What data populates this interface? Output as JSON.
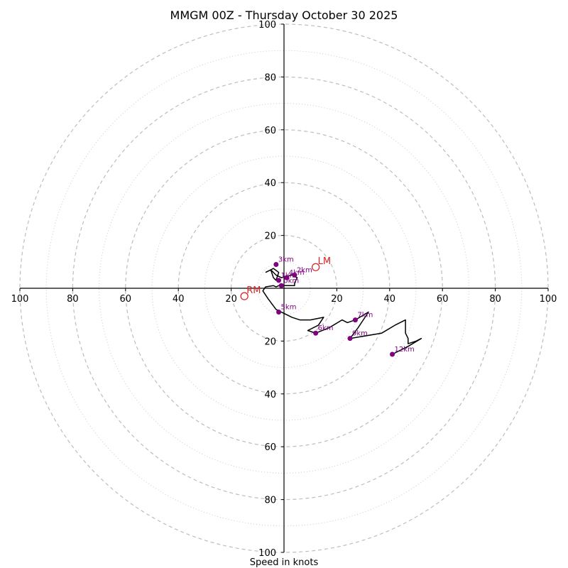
{
  "chart_data": {
    "type": "hodograph",
    "title": "MMGM 00Z - Thursday October 30 2025",
    "xlabel": "Speed in knots",
    "range": [
      -100,
      100
    ],
    "rings_major": [
      20,
      40,
      60,
      80,
      100
    ],
    "rings_minor": [
      10,
      30,
      50,
      70,
      90
    ],
    "tick_values": [
      100,
      80,
      60,
      40,
      20
    ],
    "hodograph_line": [
      [
        -7,
        6
      ],
      [
        -4,
        7.5
      ],
      [
        -2,
        6
      ],
      [
        -3,
        3
      ],
      [
        -4,
        4
      ],
      [
        -5,
        7
      ],
      [
        -3,
        5
      ],
      [
        -1,
        4
      ],
      [
        3,
        5
      ],
      [
        5,
        4
      ],
      [
        4,
        2
      ],
      [
        4,
        1
      ],
      [
        0,
        1
      ],
      [
        -2,
        1
      ],
      [
        -3,
        0.5
      ],
      [
        -4,
        1
      ],
      [
        -7,
        0.5
      ],
      [
        -8,
        -1
      ],
      [
        -6,
        -4
      ],
      [
        -3,
        -8
      ],
      [
        3,
        -11
      ],
      [
        6,
        -12
      ],
      [
        10,
        -12
      ],
      [
        15,
        -11
      ],
      [
        13,
        -14
      ],
      [
        9,
        -16
      ],
      [
        12,
        -17
      ],
      [
        17,
        -15
      ],
      [
        22,
        -12
      ],
      [
        24,
        -13
      ],
      [
        27,
        -12
      ],
      [
        32,
        -9
      ],
      [
        28,
        -15
      ],
      [
        25,
        -19
      ],
      [
        37,
        -17
      ],
      [
        42,
        -14
      ],
      [
        46,
        -12
      ],
      [
        46,
        -17
      ],
      [
        47,
        -19
      ],
      [
        47,
        -21
      ],
      [
        50,
        -20
      ],
      [
        52,
        -19
      ],
      [
        47,
        -22
      ],
      [
        41,
        -25
      ]
    ],
    "height_markers": [
      {
        "label": "0km",
        "u": -1,
        "v": 1
      },
      {
        "label": "1km",
        "u": -2,
        "v": 3
      },
      {
        "label": "2km",
        "u": 4,
        "v": 5
      },
      {
        "label": "3km",
        "u": -3,
        "v": 9
      },
      {
        "label": "4km",
        "u": 1,
        "v": 4
      },
      {
        "label": "5km",
        "u": -2,
        "v": -9
      },
      {
        "label": "6km",
        "u": 12,
        "v": -17
      },
      {
        "label": "7km",
        "u": 27,
        "v": -12
      },
      {
        "label": "9km",
        "u": 25,
        "v": -19
      },
      {
        "label": "12km",
        "u": 41,
        "v": -25
      }
    ],
    "storm_motion": [
      {
        "label": "LM",
        "u": 12,
        "v": 8
      },
      {
        "label": "RM",
        "u": -15,
        "v": -3
      }
    ]
  },
  "colors": {
    "grid": "#bdbdbd",
    "line": "#000000",
    "marker": "#800080",
    "motion": "#d62728"
  }
}
